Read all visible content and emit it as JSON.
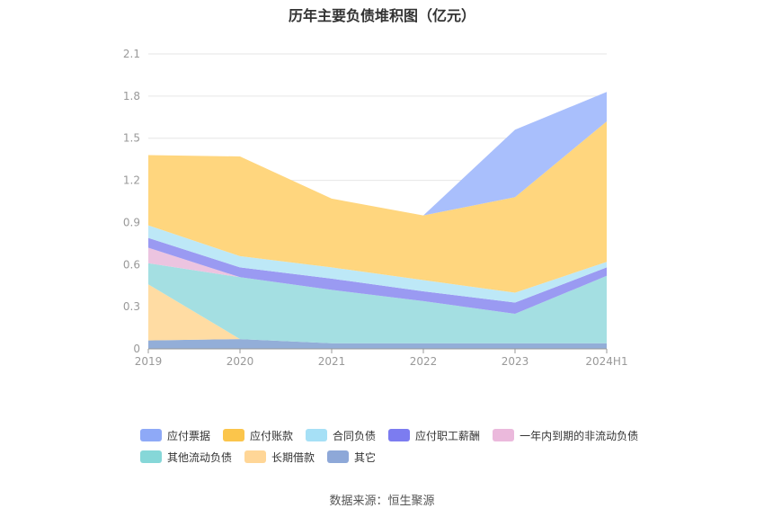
{
  "chart_data": {
    "type": "area",
    "stacked": true,
    "title": "历年主要负债堆积图（亿元）",
    "categories": [
      "2019",
      "2020",
      "2021",
      "2022",
      "2023",
      "2024H1"
    ],
    "ylim": [
      0,
      2.1
    ],
    "yticks": [
      "0",
      "0.3",
      "0.6",
      "0.9",
      "1.2",
      "1.5",
      "1.8",
      "2.1"
    ],
    "grid": true,
    "legend_position": "bottom",
    "series": [
      {
        "name": "其它",
        "color": "#93aed8",
        "values": [
          0.06,
          0.07,
          0.04,
          0.04,
          0.04,
          0.04
        ]
      },
      {
        "name": "长期借款",
        "color": "#ffdca3",
        "values": [
          0.4,
          0.0,
          0.0,
          0.0,
          0.0,
          0.0
        ]
      },
      {
        "name": "其他流动负债",
        "color": "#a4dfe2",
        "values": [
          0.15,
          0.44,
          0.38,
          0.3,
          0.21,
          0.48
        ]
      },
      {
        "name": "一年内到期的非流动负债",
        "color": "#ecc4e0",
        "values": [
          0.11,
          0.0,
          0.0,
          0.0,
          0.0,
          0.0
        ]
      },
      {
        "name": "应付职工薪酬",
        "color": "#9a9af2",
        "values": [
          0.07,
          0.07,
          0.08,
          0.07,
          0.08,
          0.06
        ]
      },
      {
        "name": "合同负债",
        "color": "#bde8f7",
        "values": [
          0.09,
          0.08,
          0.08,
          0.08,
          0.07,
          0.04
        ]
      },
      {
        "name": "应付账款",
        "color": "#ffd67e",
        "values": [
          0.5,
          0.71,
          0.49,
          0.46,
          0.68,
          1.0
        ]
      },
      {
        "name": "应付票据",
        "color": "#a9bffc",
        "values": [
          0.0,
          0.0,
          0.0,
          0.0,
          0.48,
          0.21
        ]
      }
    ]
  },
  "legend": {
    "row1": [
      {
        "name": "应付票据",
        "color": "#8ea9f7"
      },
      {
        "name": "应付账款",
        "color": "#fbc54b"
      },
      {
        "name": "合同负债",
        "color": "#a6e0f6"
      },
      {
        "name": "应付职工薪酬",
        "color": "#7c7cf0"
      },
      {
        "name": "一年内到期的非流动负债",
        "color": "#ebb9dc"
      }
    ],
    "row2": [
      {
        "name": "其他流动负债",
        "color": "#86d7d8"
      },
      {
        "name": "长期借款",
        "color": "#ffd697"
      },
      {
        "name": "其它",
        "color": "#8ea8d8"
      }
    ]
  },
  "source": "数据来源：恒生聚源"
}
